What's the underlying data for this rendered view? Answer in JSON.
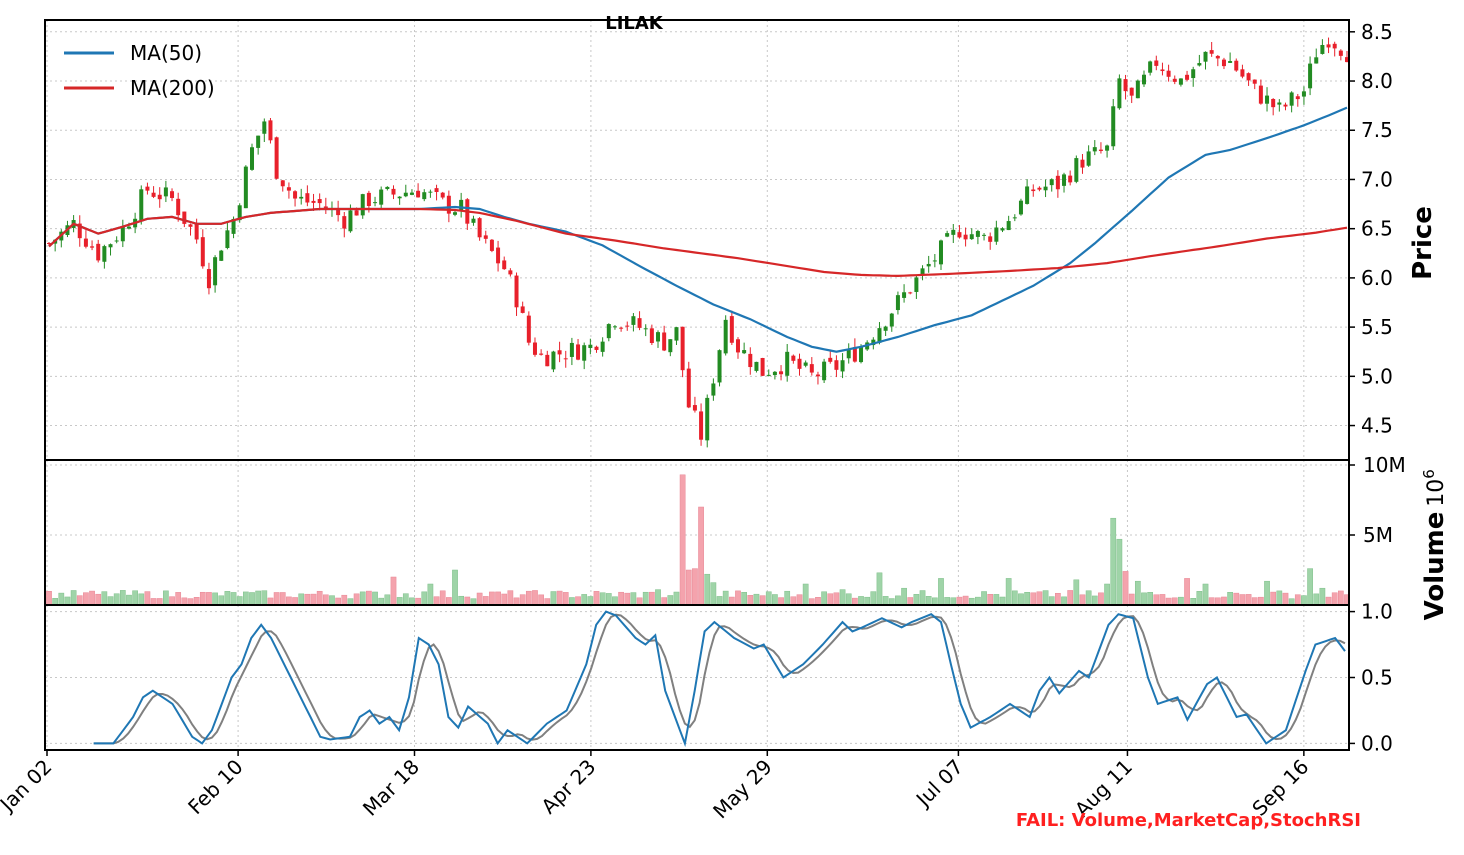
{
  "chart_data": {
    "type": "candlestick",
    "title": "LILAK",
    "ticker": "LILAK",
    "x_tick_labels": [
      "Jan 02",
      "Feb 10",
      "Mar 18",
      "Apr 23",
      "May 29",
      "Jul 07",
      "Aug 11",
      "Sep 16"
    ],
    "legend": {
      "placement": "upper-left",
      "entries": [
        {
          "label": "MA(50)",
          "color": "#1f77b4"
        },
        {
          "label": "MA(200)",
          "color": "#d62728"
        }
      ]
    },
    "colors": {
      "up": "#228b22",
      "down": "#e8202b",
      "vol_up": "#9fd4a8",
      "vol_down": "#f4a3ad",
      "stoch_k": "#1f77b4",
      "stoch_d": "#808080",
      "fail": "#ff2020"
    },
    "price_panel": {
      "ylabel": "Price",
      "ylim": [
        4.15,
        8.62
      ],
      "yticks": [
        4.5,
        5.0,
        5.5,
        6.0,
        6.5,
        7.0,
        7.5,
        8.0,
        8.5
      ],
      "ytick_labels": [
        "4.5",
        "5.0",
        "5.5",
        "6.0",
        "6.5",
        "7.0",
        "7.5",
        "8.0",
        "8.5"
      ],
      "grid": true,
      "daily_close_keypoints": [
        [
          0,
          6.35
        ],
        [
          4,
          6.55
        ],
        [
          8,
          6.25
        ],
        [
          12,
          6.5
        ],
        [
          16,
          6.9
        ],
        [
          20,
          6.8
        ],
        [
          24,
          6.4
        ],
        [
          26,
          6.0
        ],
        [
          28,
          6.35
        ],
        [
          30,
          6.6
        ],
        [
          33,
          7.3
        ],
        [
          35,
          7.6
        ],
        [
          37,
          7.1
        ],
        [
          40,
          6.8
        ],
        [
          44,
          6.75
        ],
        [
          48,
          6.6
        ],
        [
          52,
          6.8
        ],
        [
          56,
          6.85
        ],
        [
          60,
          6.9
        ],
        [
          64,
          6.75
        ],
        [
          67,
          6.7
        ],
        [
          70,
          6.4
        ],
        [
          74,
          6.1
        ],
        [
          76,
          5.8
        ],
        [
          78,
          5.35
        ],
        [
          80,
          5.2
        ],
        [
          84,
          5.25
        ],
        [
          88,
          5.3
        ],
        [
          92,
          5.6
        ],
        [
          96,
          5.5
        ],
        [
          100,
          5.35
        ],
        [
          102,
          5.45
        ],
        [
          104,
          4.7
        ],
        [
          106,
          4.4
        ],
        [
          108,
          5.0
        ],
        [
          110,
          5.6
        ],
        [
          112,
          5.3
        ],
        [
          116,
          5.05
        ],
        [
          120,
          5.15
        ],
        [
          124,
          5.0
        ],
        [
          128,
          5.1
        ],
        [
          132,
          5.3
        ],
        [
          136,
          5.6
        ],
        [
          140,
          5.9
        ],
        [
          144,
          6.2
        ],
        [
          148,
          6.5
        ],
        [
          152,
          6.4
        ],
        [
          156,
          6.6
        ],
        [
          160,
          6.9
        ],
        [
          164,
          6.95
        ],
        [
          168,
          7.2
        ],
        [
          172,
          7.3
        ],
        [
          174,
          8.0
        ],
        [
          176,
          7.8
        ],
        [
          180,
          8.2
        ],
        [
          184,
          8.0
        ],
        [
          188,
          8.25
        ],
        [
          192,
          8.2
        ],
        [
          196,
          7.9
        ],
        [
          200,
          7.7
        ],
        [
          204,
          7.9
        ],
        [
          206,
          8.3
        ],
        [
          208,
          8.45
        ],
        [
          211,
          8.3
        ]
      ]
    },
    "moving_averages": {
      "MA(50)": [
        [
          0,
          6.32
        ],
        [
          4,
          6.55
        ],
        [
          8,
          6.45
        ],
        [
          12,
          6.52
        ],
        [
          16,
          6.6
        ],
        [
          20,
          6.62
        ],
        [
          24,
          6.55
        ],
        [
          28,
          6.55
        ],
        [
          32,
          6.62
        ],
        [
          36,
          6.66
        ],
        [
          44,
          6.7
        ],
        [
          52,
          6.7
        ],
        [
          60,
          6.7
        ],
        [
          66,
          6.72
        ],
        [
          70,
          6.7
        ],
        [
          74,
          6.62
        ],
        [
          78,
          6.55
        ],
        [
          84,
          6.47
        ],
        [
          90,
          6.33
        ],
        [
          96,
          6.12
        ],
        [
          102,
          5.92
        ],
        [
          108,
          5.73
        ],
        [
          114,
          5.58
        ],
        [
          120,
          5.4
        ],
        [
          124,
          5.3
        ],
        [
          128,
          5.25
        ],
        [
          132,
          5.3
        ],
        [
          138,
          5.4
        ],
        [
          144,
          5.52
        ],
        [
          150,
          5.62
        ],
        [
          156,
          5.8
        ],
        [
          160,
          5.92
        ],
        [
          166,
          6.15
        ],
        [
          170,
          6.35
        ],
        [
          176,
          6.68
        ],
        [
          182,
          7.02
        ],
        [
          188,
          7.25
        ],
        [
          192,
          7.3
        ],
        [
          198,
          7.42
        ],
        [
          204,
          7.55
        ],
        [
          208,
          7.65
        ],
        [
          211,
          7.73
        ]
      ],
      "MA(200)": [
        [
          0,
          6.32
        ],
        [
          4,
          6.55
        ],
        [
          8,
          6.45
        ],
        [
          12,
          6.52
        ],
        [
          16,
          6.6
        ],
        [
          20,
          6.62
        ],
        [
          24,
          6.55
        ],
        [
          28,
          6.55
        ],
        [
          32,
          6.62
        ],
        [
          36,
          6.66
        ],
        [
          44,
          6.7
        ],
        [
          52,
          6.7
        ],
        [
          60,
          6.7
        ],
        [
          66,
          6.69
        ],
        [
          70,
          6.66
        ],
        [
          76,
          6.58
        ],
        [
          84,
          6.45
        ],
        [
          92,
          6.38
        ],
        [
          100,
          6.3
        ],
        [
          106,
          6.25
        ],
        [
          112,
          6.2
        ],
        [
          120,
          6.12
        ],
        [
          126,
          6.06
        ],
        [
          132,
          6.03
        ],
        [
          138,
          6.02
        ],
        [
          146,
          6.04
        ],
        [
          156,
          6.07
        ],
        [
          164,
          6.1
        ],
        [
          172,
          6.15
        ],
        [
          180,
          6.23
        ],
        [
          190,
          6.32
        ],
        [
          198,
          6.4
        ],
        [
          206,
          6.46
        ],
        [
          211,
          6.51
        ]
      ]
    },
    "volume_panel": {
      "ylabel": "Volume",
      "scale_label": "10",
      "scale_exponent": "6",
      "ylim": [
        0,
        10
      ],
      "yticks": [
        5,
        10
      ],
      "ytick_labels": [
        "5M",
        "10M"
      ],
      "baseline_millions": 1.0,
      "spikes_millions": [
        [
          56,
          2.0
        ],
        [
          62,
          1.5
        ],
        [
          66,
          2.5
        ],
        [
          99,
          1.1
        ],
        [
          103,
          9.3
        ],
        [
          104,
          2.5
        ],
        [
          105,
          2.6
        ],
        [
          106,
          7.0
        ],
        [
          107,
          2.2
        ],
        [
          108,
          1.6
        ],
        [
          123,
          1.5
        ],
        [
          129,
          1.1
        ],
        [
          135,
          2.3
        ],
        [
          139,
          1.2
        ],
        [
          145,
          1.9
        ],
        [
          156,
          1.9
        ],
        [
          167,
          1.8
        ],
        [
          172,
          1.5
        ],
        [
          173,
          6.2
        ],
        [
          174,
          4.7
        ],
        [
          175,
          2.4
        ],
        [
          177,
          1.7
        ],
        [
          185,
          1.9
        ],
        [
          188,
          1.5
        ],
        [
          198,
          1.7
        ],
        [
          205,
          2.6
        ],
        [
          207,
          1.2
        ]
      ]
    },
    "stoch_rsi_panel": {
      "ylim": [
        -0.05,
        1.05
      ],
      "yticks": [
        0.0,
        0.5,
        1.0
      ],
      "ytick_labels": [
        "0.0",
        "0.5",
        "1.0"
      ],
      "k_keypoints": [
        [
          4,
          0.0
        ],
        [
          8,
          0.0
        ],
        [
          12,
          0.2
        ],
        [
          14,
          0.35
        ],
        [
          16,
          0.4
        ],
        [
          20,
          0.3
        ],
        [
          24,
          0.05
        ],
        [
          26,
          0.0
        ],
        [
          28,
          0.1
        ],
        [
          32,
          0.5
        ],
        [
          34,
          0.6
        ],
        [
          36,
          0.8
        ],
        [
          38,
          0.9
        ],
        [
          40,
          0.8
        ],
        [
          44,
          0.5
        ],
        [
          48,
          0.2
        ],
        [
          50,
          0.05
        ],
        [
          52,
          0.03
        ],
        [
          56,
          0.05
        ],
        [
          58,
          0.2
        ],
        [
          60,
          0.25
        ],
        [
          62,
          0.15
        ],
        [
          64,
          0.2
        ],
        [
          66,
          0.1
        ],
        [
          68,
          0.35
        ],
        [
          70,
          0.8
        ],
        [
          72,
          0.75
        ],
        [
          74,
          0.6
        ],
        [
          76,
          0.2
        ],
        [
          78,
          0.12
        ],
        [
          80,
          0.28
        ],
        [
          84,
          0.15
        ],
        [
          86,
          0.0
        ],
        [
          88,
          0.1
        ],
        [
          92,
          0.0
        ],
        [
          96,
          0.15
        ],
        [
          100,
          0.25
        ],
        [
          104,
          0.6
        ],
        [
          106,
          0.9
        ],
        [
          108,
          1.0
        ],
        [
          110,
          0.97
        ],
        [
          114,
          0.8
        ],
        [
          116,
          0.75
        ],
        [
          118,
          0.82
        ],
        [
          120,
          0.4
        ],
        [
          122,
          0.2
        ],
        [
          124,
          0.0
        ],
        [
          126,
          0.4
        ],
        [
          128,
          0.85
        ],
        [
          130,
          0.92
        ],
        [
          134,
          0.8
        ],
        [
          138,
          0.72
        ],
        [
          140,
          0.75
        ],
        [
          144,
          0.5
        ],
        [
          148,
          0.6
        ],
        [
          152,
          0.75
        ],
        [
          156,
          0.92
        ],
        [
          158,
          0.85
        ],
        [
          160,
          0.88
        ],
        [
          164,
          0.95
        ],
        [
          168,
          0.88
        ],
        [
          170,
          0.92
        ],
        [
          174,
          0.98
        ],
        [
          176,
          0.92
        ],
        [
          178,
          0.6
        ],
        [
          180,
          0.3
        ],
        [
          182,
          0.12
        ],
        [
          186,
          0.2
        ],
        [
          190,
          0.3
        ],
        [
          194,
          0.2
        ],
        [
          196,
          0.4
        ],
        [
          198,
          0.5
        ],
        [
          200,
          0.38
        ],
        [
          204,
          0.55
        ],
        [
          206,
          0.5
        ],
        [
          210,
          0.9
        ],
        [
          212,
          0.98
        ],
        [
          215,
          0.95
        ],
        [
          218,
          0.5
        ],
        [
          220,
          0.3
        ],
        [
          224,
          0.35
        ],
        [
          226,
          0.18
        ],
        [
          230,
          0.45
        ],
        [
          232,
          0.5
        ],
        [
          236,
          0.2
        ],
        [
          238,
          0.22
        ],
        [
          242,
          0.0
        ],
        [
          246,
          0.1
        ],
        [
          250,
          0.55
        ],
        [
          252,
          0.75
        ],
        [
          256,
          0.8
        ],
        [
          258,
          0.7
        ]
      ],
      "d_lag": 2
    },
    "annotations": [
      {
        "text": "FAIL: Volume,MarketCap,StochRSI",
        "placement": "bottom-right",
        "color": "#ff2020"
      }
    ]
  }
}
